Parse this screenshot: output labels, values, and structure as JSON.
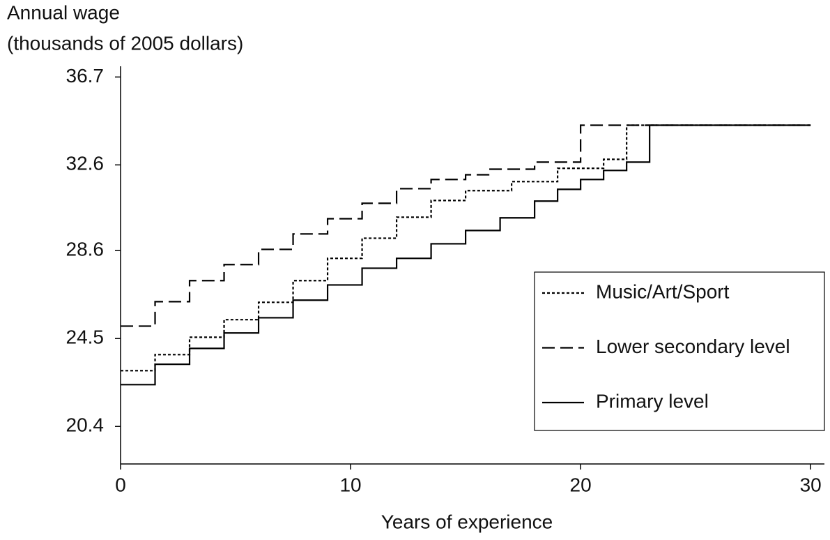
{
  "chart_data": {
    "type": "step",
    "ylabel_lines": [
      "Annual wage",
      "(thousands of 2005 dollars)"
    ],
    "xlabel": "Years of experience",
    "xlim": [
      0,
      30.6
    ],
    "xticks": [
      0,
      10,
      20,
      30
    ],
    "ylim": [
      18.65,
      37.2
    ],
    "yticks": [
      20.4,
      24.5,
      28.6,
      32.6,
      36.7
    ],
    "legend": "lower right",
    "series": [
      {
        "name": "Music/Art/Sport",
        "color": "#000000",
        "dash": "dotted",
        "x": [
          0,
          1.5,
          3,
          4.5,
          6,
          7.5,
          9,
          10.5,
          12,
          13.5,
          15,
          17,
          19,
          21,
          22,
          30
        ],
        "values": [
          23.0,
          23.75,
          24.56,
          25.38,
          26.19,
          27.2,
          28.24,
          29.18,
          30.16,
          30.94,
          31.4,
          31.82,
          32.44,
          32.86,
          34.45,
          34.45
        ]
      },
      {
        "name": "Lower secondary level",
        "color": "#000000",
        "dash": "dashed",
        "x": [
          0,
          1.5,
          3,
          4.5,
          6,
          7.5,
          9,
          10.5,
          12,
          13.5,
          15,
          16,
          18,
          20,
          30
        ],
        "values": [
          25.08,
          26.22,
          27.2,
          27.95,
          28.66,
          29.38,
          30.09,
          30.81,
          31.49,
          31.92,
          32.14,
          32.4,
          32.73,
          34.45,
          34.45
        ]
      },
      {
        "name": "Primary level",
        "color": "#000000",
        "dash": "solid",
        "x": [
          0,
          1.5,
          3,
          4.5,
          6,
          7.5,
          9,
          10.5,
          12,
          13.5,
          15,
          16.5,
          18,
          19,
          20,
          21,
          22,
          23,
          30
        ],
        "values": [
          22.35,
          23.3,
          24.04,
          24.76,
          25.47,
          26.29,
          27.0,
          27.78,
          28.24,
          28.92,
          29.54,
          30.13,
          30.91,
          31.46,
          31.92,
          32.34,
          32.73,
          34.45,
          34.45
        ]
      }
    ]
  }
}
